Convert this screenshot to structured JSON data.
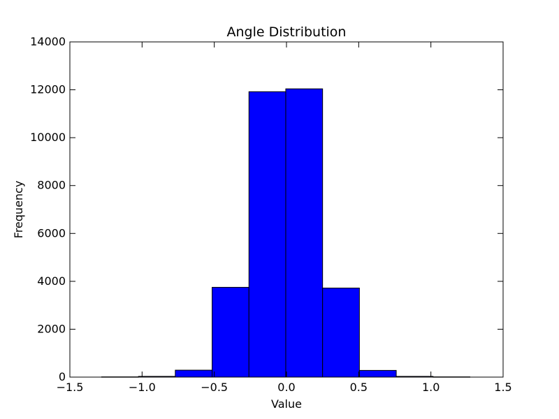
{
  "chart_data": {
    "type": "bar",
    "title": "Angle Distribution",
    "xlabel": "Value",
    "ylabel": "Frequency",
    "xlim": [
      -1.5,
      1.5
    ],
    "ylim": [
      0,
      14000
    ],
    "xticks": [
      "−1.5",
      "−1.0",
      "−0.5",
      "0.0",
      "0.5",
      "1.0",
      "1.5"
    ],
    "yticks": [
      "0",
      "2000",
      "4000",
      "6000",
      "8000",
      "10000",
      "12000",
      "14000"
    ],
    "bins": [
      {
        "x0": -1.28,
        "x1": -1.025,
        "value": 10
      },
      {
        "x0": -1.025,
        "x1": -0.77,
        "value": 30
      },
      {
        "x0": -0.77,
        "x1": -0.515,
        "value": 290
      },
      {
        "x0": -0.515,
        "x1": -0.26,
        "value": 3750
      },
      {
        "x0": -0.26,
        "x1": -0.005,
        "value": 11920
      },
      {
        "x0": -0.005,
        "x1": 0.25,
        "value": 12040
      },
      {
        "x0": 0.25,
        "x1": 0.505,
        "value": 3720
      },
      {
        "x0": 0.505,
        "x1": 0.76,
        "value": 280
      },
      {
        "x0": 0.76,
        "x1": 1.015,
        "value": 30
      },
      {
        "x0": 1.015,
        "x1": 1.27,
        "value": 10
      }
    ],
    "bar_color": "#0000ff",
    "edge_color": "#000000",
    "grid": false,
    "legend": "none"
  }
}
